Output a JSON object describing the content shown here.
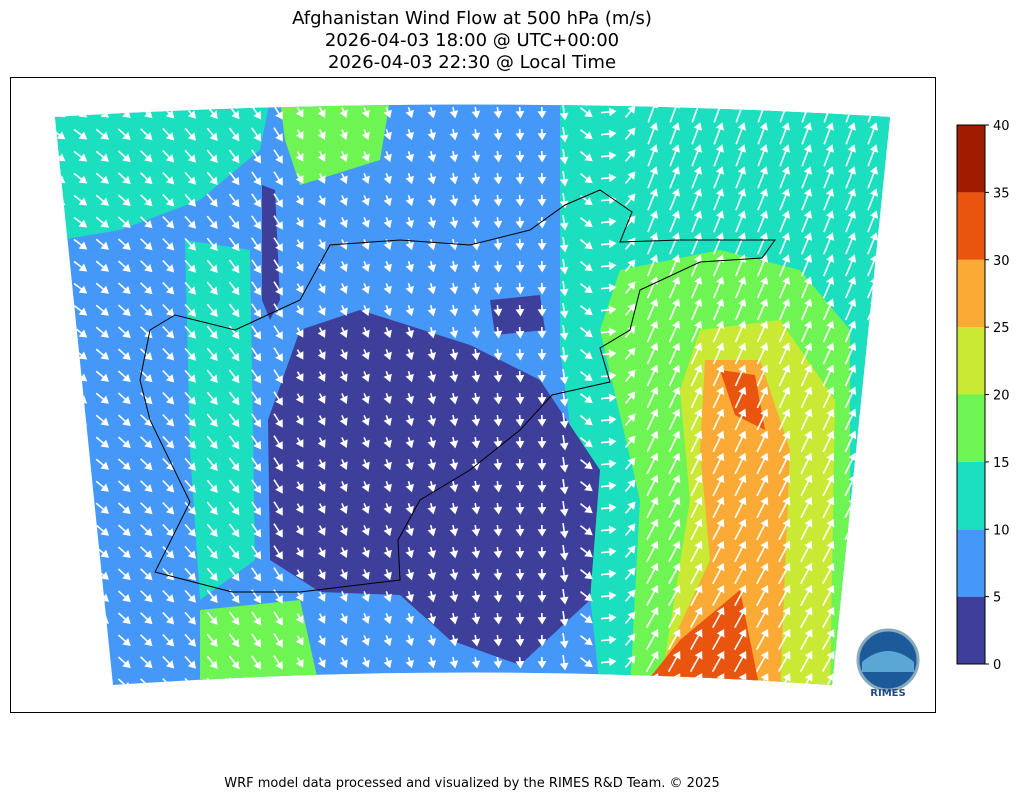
{
  "chart_data": {
    "type": "contour-map",
    "title": "Afghanistan Wind Flow at 500 hPa (m/s)",
    "subtitle": [
      "2026-04-03 18:00 @ UTC+00:00",
      "2026-04-03 22:30 @ Local Time"
    ],
    "colorbar": {
      "levels": [
        0,
        5,
        10,
        15,
        20,
        25,
        30,
        35,
        40
      ],
      "colors": [
        "#3e3f9b",
        "#4698f8",
        "#1bdfbe",
        "#6ff553",
        "#c9e934",
        "#fbab35",
        "#e9540f",
        "#a11b00"
      ]
    },
    "logo_text": "RIMES",
    "footer": "WRF model data processed and visualized by the RIMES R&D Team. © 2025"
  }
}
